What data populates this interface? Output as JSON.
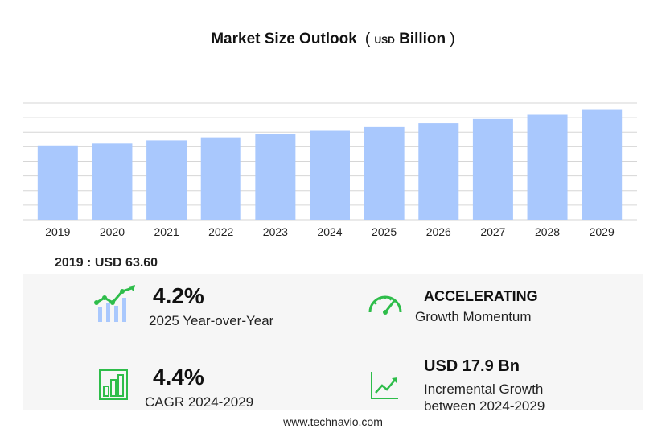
{
  "title": {
    "main": "Market Size Outlook",
    "open_paren": "(",
    "unit_small": "USD",
    "unit_big": "Billion",
    "close_paren": ")"
  },
  "chart_data": {
    "type": "bar",
    "categories": [
      "2019",
      "2020",
      "2021",
      "2022",
      "2023",
      "2024",
      "2025",
      "2026",
      "2027",
      "2028",
      "2029"
    ],
    "values": [
      63.6,
      65.3,
      68.0,
      70.6,
      73.2,
      76.2,
      79.4,
      82.7,
      86.3,
      90.0,
      94.1
    ],
    "ylim": [
      0,
      100
    ],
    "bar_color": "#a9c8fd",
    "grid": true
  },
  "base_year": {
    "label": "2019 : USD  63.60"
  },
  "kpis": {
    "yoy": {
      "value": "4.2%",
      "label": "2025 Year-over-Year"
    },
    "momentum": {
      "head": "ACCELERATING",
      "label": "Growth Momentum"
    },
    "cagr": {
      "value": "4.4%",
      "label": "CAGR 2024-2029"
    },
    "incremental": {
      "value": "USD 17.9 Bn",
      "line1": "Incremental Growth",
      "line2": "between 2024-2029"
    }
  },
  "icons": {
    "yoy": "bar-trend-icon",
    "momentum": "speedometer-icon",
    "cagr": "bar-chart-icon",
    "incremental": "line-chart-icon",
    "accent_color": "#2ebd4a",
    "bar_icon_color": "#a9c8fd"
  },
  "footer": {
    "text": "www.technavio.com"
  }
}
